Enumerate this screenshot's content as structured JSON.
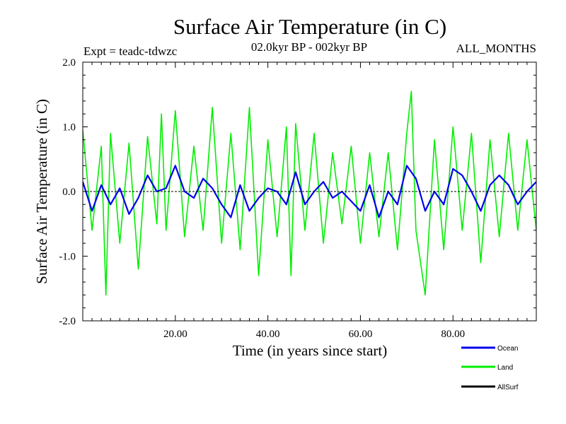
{
  "chart_data": {
    "type": "line",
    "title": "Surface Air Temperature (in C)",
    "subtitle_left": "Expt = teadc-tdwzc",
    "subtitle_center": "02.0kyr BP - 002kyr BP",
    "subtitle_right": "ALL_MONTHS",
    "xlabel": "Time (in years since start)",
    "ylabel": "Surface Air Temperature (in C)",
    "xlim": [
      0,
      98
    ],
    "ylim": [
      -2.0,
      2.0
    ],
    "x_ticks": [
      20,
      40,
      60,
      80
    ],
    "x_tick_labels": [
      "20.00",
      "40.00",
      "60.00",
      "80.00"
    ],
    "y_ticks": [
      2.0,
      1.0,
      0.0,
      -1.0,
      -2.0
    ],
    "y_tick_labels": [
      "2.0",
      "1.0",
      "0.0",
      "-1.0",
      "-2.0"
    ],
    "zero_line": true,
    "grid": false,
    "legend_position": "bottom-right",
    "series": [
      {
        "name": "Land",
        "color": "#00ee00",
        "x": [
          0,
          2,
          4,
          5,
          6,
          8,
          10,
          12,
          14,
          16,
          17,
          18,
          20,
          22,
          24,
          26,
          28,
          30,
          32,
          34,
          36,
          38,
          40,
          42,
          44,
          45,
          46,
          48,
          50,
          52,
          54,
          56,
          58,
          60,
          62,
          64,
          66,
          68,
          70,
          71,
          72,
          74,
          76,
          78,
          80,
          82,
          84,
          86,
          88,
          90,
          92,
          94,
          96,
          98
        ],
        "values": [
          0.95,
          -0.6,
          0.7,
          -1.6,
          0.9,
          -0.8,
          0.75,
          -1.2,
          0.85,
          -0.5,
          1.2,
          -0.6,
          1.25,
          -0.7,
          0.7,
          -0.6,
          1.3,
          -0.8,
          0.9,
          -0.9,
          1.3,
          -1.3,
          0.8,
          -0.7,
          1.0,
          -1.3,
          1.05,
          -0.6,
          0.9,
          -0.8,
          0.6,
          -0.5,
          0.7,
          -0.8,
          0.6,
          -0.7,
          0.6,
          -0.9,
          0.9,
          1.55,
          -0.6,
          -1.6,
          0.8,
          -0.9,
          1.0,
          -0.6,
          0.9,
          -1.1,
          0.8,
          -0.7,
          0.9,
          -0.6,
          0.8,
          -0.6
        ]
      },
      {
        "name": "Ocean",
        "color": "#0000ee",
        "x": [
          0,
          2,
          4,
          6,
          8,
          10,
          12,
          14,
          16,
          18,
          20,
          22,
          24,
          26,
          28,
          30,
          32,
          34,
          36,
          38,
          40,
          42,
          44,
          46,
          48,
          50,
          52,
          54,
          56,
          58,
          60,
          62,
          64,
          66,
          68,
          70,
          72,
          74,
          76,
          78,
          80,
          82,
          84,
          86,
          88,
          90,
          92,
          94,
          96,
          98
        ],
        "values": [
          0.15,
          -0.3,
          0.1,
          -0.2,
          0.05,
          -0.35,
          -0.1,
          0.25,
          0.0,
          0.05,
          0.4,
          0.0,
          -0.1,
          0.2,
          0.05,
          -0.2,
          -0.4,
          0.1,
          -0.3,
          -0.1,
          0.05,
          0.0,
          -0.2,
          0.3,
          -0.2,
          0.0,
          0.15,
          -0.1,
          0.0,
          -0.15,
          -0.3,
          0.1,
          -0.4,
          0.0,
          -0.2,
          0.4,
          0.2,
          -0.3,
          0.0,
          -0.2,
          0.35,
          0.25,
          0.0,
          -0.3,
          0.1,
          0.25,
          0.1,
          -0.2,
          0.0,
          0.15
        ]
      },
      {
        "name": "AllSurf",
        "color": "#000000",
        "x": [],
        "values": []
      }
    ]
  }
}
